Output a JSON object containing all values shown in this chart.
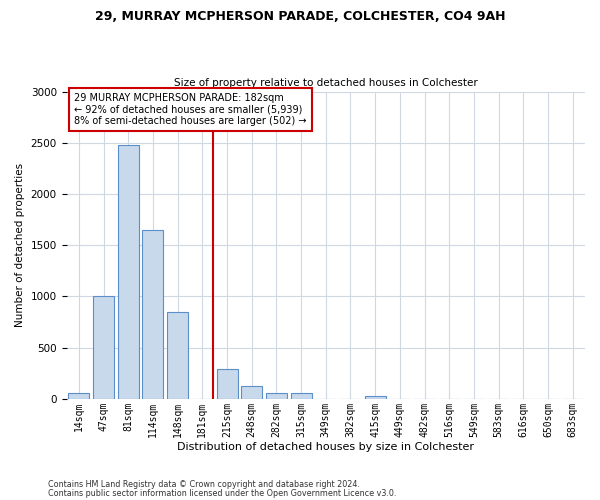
{
  "title1": "29, MURRAY MCPHERSON PARADE, COLCHESTER, CO4 9AH",
  "title2": "Size of property relative to detached houses in Colchester",
  "xlabel": "Distribution of detached houses by size in Colchester",
  "ylabel": "Number of detached properties",
  "footer1": "Contains HM Land Registry data © Crown copyright and database right 2024.",
  "footer2": "Contains public sector information licensed under the Open Government Licence v3.0.",
  "annotation_line1": "29 MURRAY MCPHERSON PARADE: 182sqm",
  "annotation_line2": "← 92% of detached houses are smaller (5,939)",
  "annotation_line3": "8% of semi-detached houses are larger (502) →",
  "bins": [
    "14sqm",
    "47sqm",
    "81sqm",
    "114sqm",
    "148sqm",
    "181sqm",
    "215sqm",
    "248sqm",
    "282sqm",
    "315sqm",
    "349sqm",
    "382sqm",
    "415sqm",
    "449sqm",
    "482sqm",
    "516sqm",
    "549sqm",
    "583sqm",
    "616sqm",
    "650sqm",
    "683sqm"
  ],
  "values": [
    60,
    1000,
    2480,
    1650,
    850,
    0,
    290,
    130,
    55,
    55,
    0,
    0,
    30,
    0,
    0,
    0,
    0,
    0,
    0,
    0,
    0
  ],
  "bar_color": "#c9d9ec",
  "bar_edge_color": "#5b8fc9",
  "vline_color": "#cc0000",
  "ylim": [
    0,
    3000
  ],
  "yticks": [
    0,
    500,
    1000,
    1500,
    2000,
    2500,
    3000
  ],
  "background_color": "#ffffff",
  "grid_color": "#d0d8e4",
  "figwidth": 6.0,
  "figheight": 5.0,
  "dpi": 100
}
